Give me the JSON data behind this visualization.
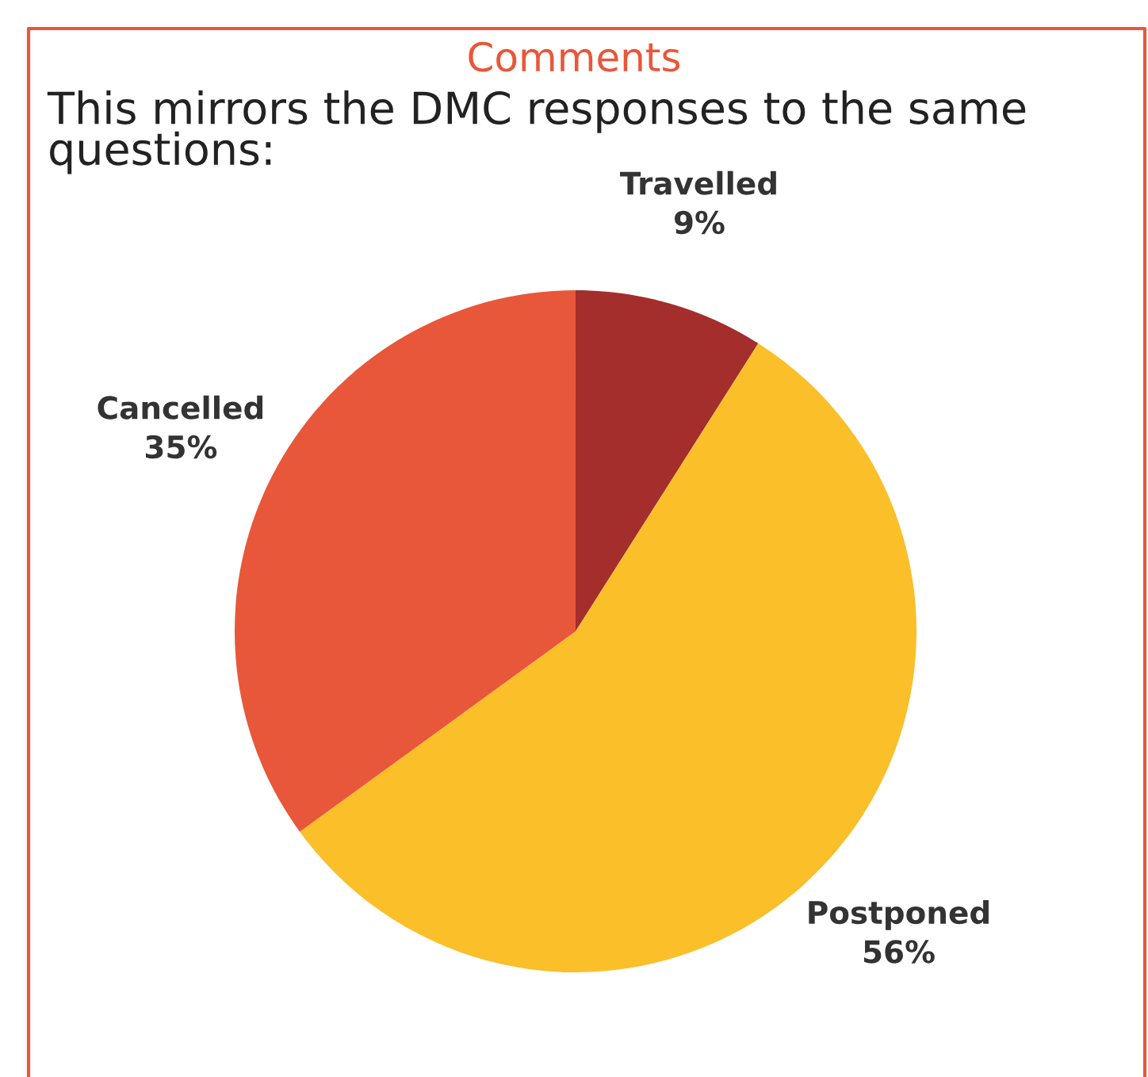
{
  "chart_data": {
    "type": "pie",
    "title": "Comments",
    "subtitle": "This mirrors the DMC responses to the same questions:",
    "categories": [
      "Travelled",
      "Postponed",
      "Cancelled"
    ],
    "values": [
      9,
      56,
      35
    ],
    "value_labels": [
      "9%",
      "56%",
      "35%"
    ],
    "colors": [
      "#a32e2b",
      "#fbbf2a",
      "#e8573a"
    ]
  }
}
